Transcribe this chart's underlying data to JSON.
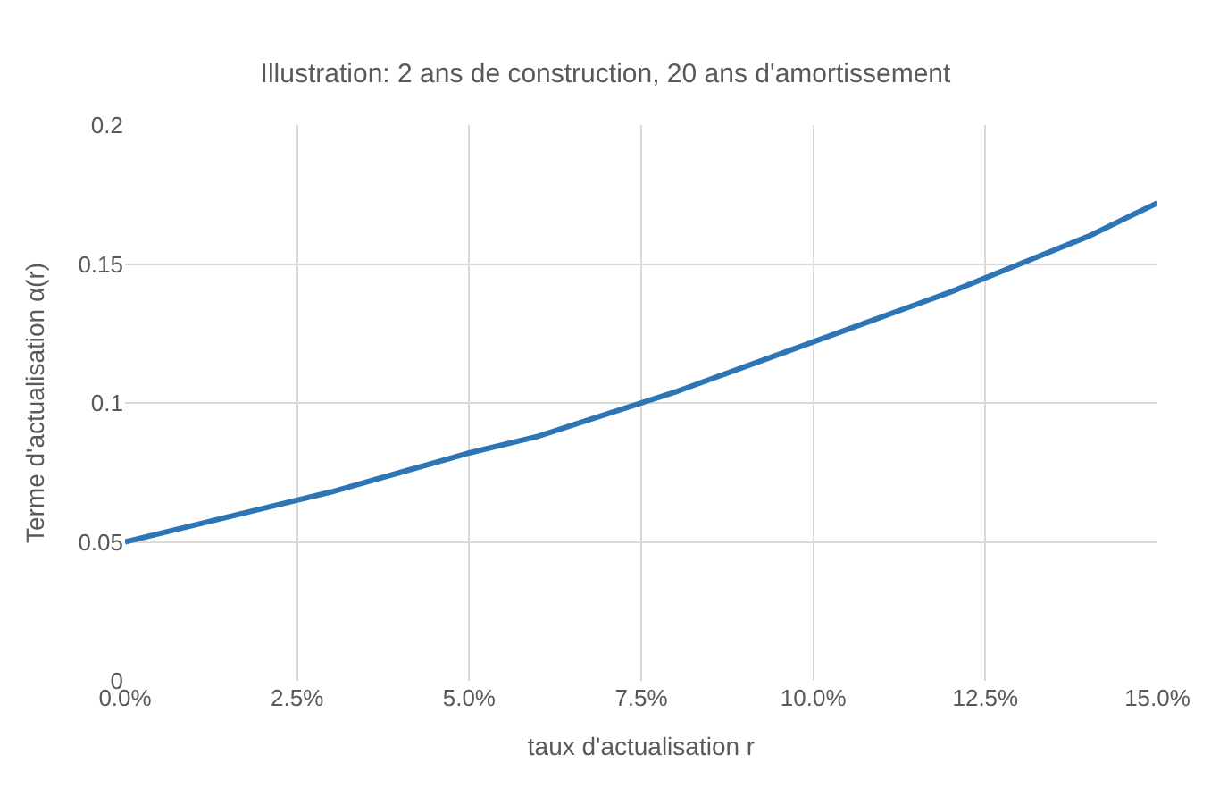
{
  "chart_data": {
    "type": "line",
    "title": "Illustration: 2 ans de construction, 20 ans d'amortissement",
    "xlabel": "taux d'actualisation r",
    "ylabel": "Terme d'actualisation α(r)",
    "x": [
      0,
      0.01,
      0.02,
      0.03,
      0.04,
      0.05,
      0.06,
      0.07,
      0.08,
      0.09,
      0.1,
      0.11,
      0.12,
      0.13,
      0.14,
      0.15
    ],
    "series": [
      {
        "color": "#2e75b6",
        "values": [
          0.05,
          0.056,
          0.062,
          0.068,
          0.075,
          0.082,
          0.088,
          0.096,
          0.104,
          0.113,
          0.122,
          0.131,
          0.14,
          0.15,
          0.16,
          0.172
        ]
      }
    ],
    "xlim": [
      0,
      0.15
    ],
    "xticks": [
      {
        "value": 0,
        "label": "0.0%"
      },
      {
        "value": 0.025,
        "label": "2.5%"
      },
      {
        "value": 0.05,
        "label": "5.0%"
      },
      {
        "value": 0.075,
        "label": "7.5%"
      },
      {
        "value": 0.1,
        "label": "10.0%"
      },
      {
        "value": 0.125,
        "label": "12.5%"
      },
      {
        "value": 0.15,
        "label": "15.0%"
      }
    ],
    "ylim": [
      0,
      0.2
    ],
    "yticks": [
      0,
      0.05,
      0.1,
      0.15,
      0.2
    ],
    "grid": true,
    "marker": "none",
    "line_style": "solid"
  }
}
